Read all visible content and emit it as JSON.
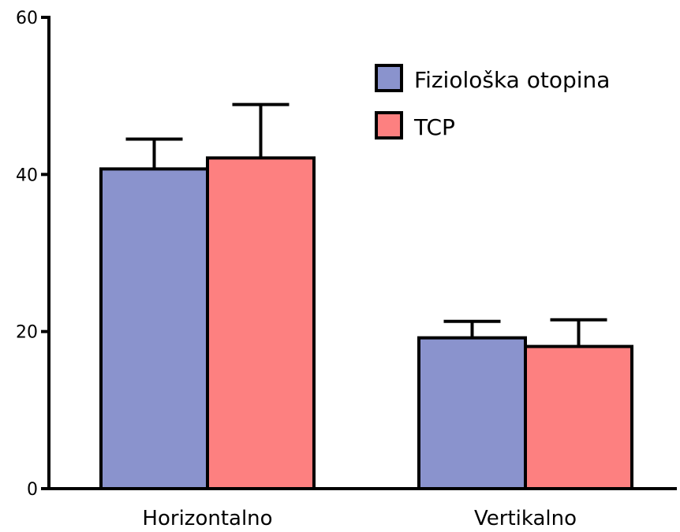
{
  "chart_data": {
    "type": "bar",
    "title": "",
    "xlabel": "",
    "ylabel": "",
    "categories": [
      "Horizontalno",
      "Vertikalno"
    ],
    "ylim": [
      0,
      60
    ],
    "yticks": [
      0,
      20,
      40,
      60
    ],
    "ytick_labels": [
      "0",
      "20",
      "40",
      "60"
    ],
    "series": [
      {
        "name": "Fiziološka otopina",
        "color": "#8A93CD",
        "values": [
          40.7,
          19.2
        ],
        "error": [
          3.8,
          2.1
        ]
      },
      {
        "name": "TCP",
        "color": "#FD8080",
        "values": [
          42.1,
          18.1
        ],
        "error": [
          6.8,
          3.4
        ]
      }
    ],
    "error_bars": "upper",
    "legend_position": "top-right",
    "grid": false
  }
}
